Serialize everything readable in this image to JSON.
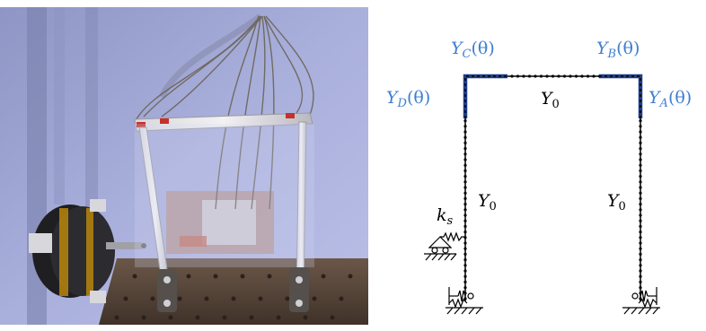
{
  "photo": {
    "description_icon": "experimental-frame-photo"
  },
  "diagram": {
    "labels": {
      "y_c": "Y",
      "y_c_sub": "C",
      "y_c_arg": "(θ)",
      "y_b": "Y",
      "y_b_sub": "B",
      "y_b_arg": "(θ)",
      "y_d": "Y",
      "y_d_sub": "D",
      "y_d_arg": "(θ)",
      "y_a": "Y",
      "y_a_sub": "A",
      "y_a_arg": "(θ)",
      "y0_top": "Y",
      "y0_top_sub": "0",
      "y0_left": "Y",
      "y0_left_sub": "0",
      "y0_right": "Y",
      "y0_right_sub": "0",
      "ks": "k",
      "ks_sub": "s"
    },
    "colors": {
      "blue_label": "#3f7fd0",
      "segment_blue": "#2a5fb0",
      "frame": "#000000"
    }
  }
}
